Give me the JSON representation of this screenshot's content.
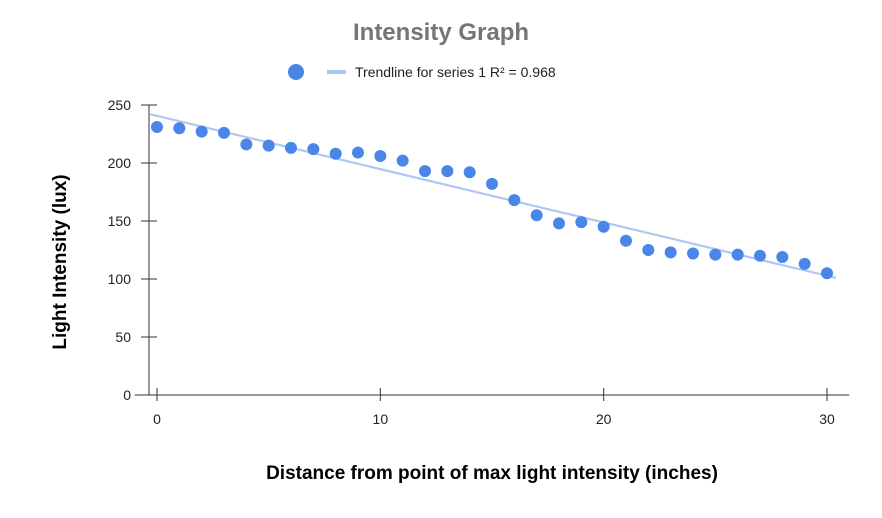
{
  "chart_data": {
    "type": "scatter",
    "title": "Intensity Graph",
    "xlabel": "Distance from point of max light intensity (inches)",
    "ylabel": "Light Intensity (lux)",
    "xlim": [
      -1,
      31
    ],
    "ylim": [
      0,
      250
    ],
    "x_ticks": [
      0,
      10,
      20,
      30
    ],
    "y_ticks": [
      0,
      50,
      100,
      150,
      200,
      250
    ],
    "grid": false,
    "legend_position": "top",
    "colors": {
      "points": "#4a86e8",
      "trendline": "#aec8f3",
      "title": "#757575"
    },
    "series": [
      {
        "x": [
          0,
          1,
          2,
          3,
          4,
          5,
          6,
          7,
          8,
          9,
          10,
          11,
          12,
          13,
          14,
          15,
          16,
          17,
          18,
          19,
          20,
          21,
          22,
          23,
          24,
          25,
          26,
          27,
          28,
          29,
          30
        ],
        "y": [
          231,
          230,
          227,
          226,
          216,
          215,
          213,
          212,
          208,
          209,
          206,
          202,
          193,
          193,
          192,
          182,
          168,
          155,
          148,
          149,
          145,
          133,
          125,
          123,
          122,
          121,
          121,
          120,
          119,
          113,
          105
        ]
      }
    ],
    "trendline": {
      "label": "Trendline for series 1 R² = 0.968",
      "start": {
        "x": -0.3,
        "y": 242
      },
      "end": {
        "x": 30.4,
        "y": 101
      }
    }
  }
}
